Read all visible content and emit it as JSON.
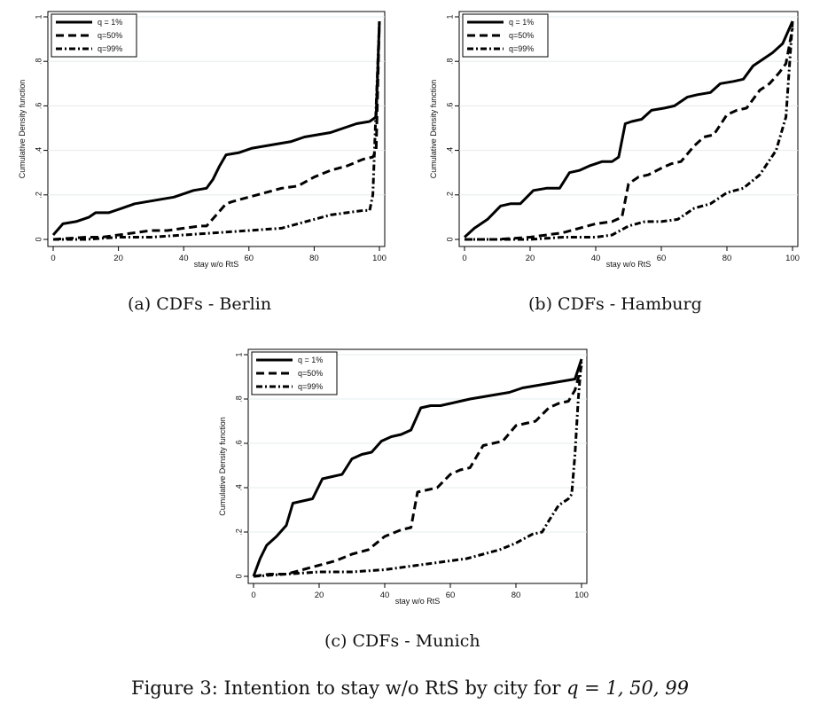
{
  "figure_caption": {
    "label": "Figure 3:",
    "text": "Intention to stay w/o RtS by city for",
    "math": "q = 1, 50, 99"
  },
  "chart_data": [
    {
      "type": "line",
      "caption": "(a) CDFs - Berlin",
      "xlabel": "stay w/o RtS",
      "ylabel": "Cumulative Density function",
      "xlim": [
        0,
        100
      ],
      "ylim": [
        0,
        1
      ],
      "xticks": [
        "0",
        "20",
        "40",
        "60",
        "80",
        "100"
      ],
      "yticks": [
        "0",
        ".2",
        ".4",
        ".6",
        ".8",
        "1"
      ],
      "legend": [
        "q = 1%",
        "q=50%",
        "q=99%"
      ],
      "series": [
        {
          "name": "q = 1%",
          "style": "solid",
          "x": [
            0,
            3,
            7,
            11,
            13,
            17,
            21,
            25,
            29,
            33,
            37,
            41,
            43,
            47,
            49,
            51,
            53,
            57,
            61,
            65,
            69,
            73,
            77,
            81,
            85,
            89,
            93,
            97,
            99,
            100
          ],
          "y": [
            0.02,
            0.07,
            0.08,
            0.1,
            0.12,
            0.12,
            0.14,
            0.16,
            0.17,
            0.18,
            0.19,
            0.21,
            0.22,
            0.23,
            0.27,
            0.33,
            0.38,
            0.39,
            0.41,
            0.42,
            0.43,
            0.44,
            0.46,
            0.47,
            0.48,
            0.5,
            0.52,
            0.53,
            0.55,
            0.98
          ]
        },
        {
          "name": "q=50%",
          "style": "dashed",
          "x": [
            0,
            10,
            15,
            20,
            25,
            30,
            35,
            40,
            45,
            47,
            50,
            53,
            55,
            60,
            65,
            70,
            75,
            80,
            85,
            90,
            95,
            98,
            99,
            100
          ],
          "y": [
            0.0,
            0.01,
            0.01,
            0.02,
            0.03,
            0.04,
            0.04,
            0.05,
            0.06,
            0.06,
            0.11,
            0.16,
            0.17,
            0.19,
            0.21,
            0.23,
            0.24,
            0.28,
            0.31,
            0.33,
            0.36,
            0.37,
            0.4,
            0.98
          ]
        },
        {
          "name": "q=99%",
          "style": "dashdot",
          "x": [
            0,
            10,
            20,
            30,
            40,
            50,
            60,
            70,
            75,
            80,
            85,
            90,
            95,
            97,
            98,
            99,
            100
          ],
          "y": [
            0.0,
            0.0,
            0.01,
            0.01,
            0.02,
            0.03,
            0.04,
            0.05,
            0.07,
            0.09,
            0.11,
            0.12,
            0.13,
            0.13,
            0.2,
            0.6,
            0.98
          ]
        }
      ]
    },
    {
      "type": "line",
      "caption": "(b) CDFs - Hamburg",
      "xlabel": "stay w/o RtS",
      "ylabel": "Cumulative Density function",
      "xlim": [
        0,
        100
      ],
      "ylim": [
        0,
        1
      ],
      "xticks": [
        "0",
        "20",
        "40",
        "60",
        "80",
        "100"
      ],
      "yticks": [
        "0",
        ".2",
        ".4",
        ".6",
        ".8",
        "1"
      ],
      "legend": [
        "q = 1%",
        "q=50%",
        "q=99%"
      ],
      "series": [
        {
          "name": "q = 1%",
          "style": "solid",
          "x": [
            0,
            3,
            7,
            11,
            14,
            17,
            21,
            25,
            29,
            32,
            35,
            38,
            42,
            45,
            47,
            49,
            51,
            54,
            57,
            61,
            64,
            68,
            71,
            75,
            78,
            82,
            85,
            88,
            91,
            94,
            97,
            100
          ],
          "y": [
            0.01,
            0.05,
            0.09,
            0.15,
            0.16,
            0.16,
            0.22,
            0.23,
            0.23,
            0.3,
            0.31,
            0.33,
            0.35,
            0.35,
            0.37,
            0.52,
            0.53,
            0.54,
            0.58,
            0.59,
            0.6,
            0.64,
            0.65,
            0.66,
            0.7,
            0.71,
            0.72,
            0.78,
            0.81,
            0.84,
            0.88,
            0.98
          ]
        },
        {
          "name": "q=50%",
          "style": "dashed",
          "x": [
            0,
            10,
            20,
            30,
            35,
            40,
            45,
            48,
            50,
            53,
            56,
            60,
            63,
            66,
            70,
            73,
            76,
            80,
            83,
            86,
            90,
            93,
            96,
            98,
            100
          ],
          "y": [
            0.0,
            0.0,
            0.01,
            0.03,
            0.05,
            0.07,
            0.08,
            0.1,
            0.25,
            0.28,
            0.29,
            0.32,
            0.34,
            0.35,
            0.42,
            0.46,
            0.47,
            0.56,
            0.58,
            0.59,
            0.67,
            0.7,
            0.75,
            0.79,
            0.95
          ]
        },
        {
          "name": "q=99%",
          "style": "dashdot",
          "x": [
            0,
            10,
            20,
            30,
            40,
            45,
            50,
            55,
            60,
            65,
            70,
            75,
            80,
            85,
            90,
            95,
            98,
            100
          ],
          "y": [
            0.0,
            0.0,
            0.0,
            0.01,
            0.01,
            0.02,
            0.06,
            0.08,
            0.08,
            0.09,
            0.14,
            0.16,
            0.21,
            0.23,
            0.29,
            0.4,
            0.55,
            0.98
          ]
        }
      ]
    },
    {
      "type": "line",
      "caption": "(c) CDFs - Munich",
      "xlabel": "stay w/o RtS",
      "ylabel": "Cumulative Density function",
      "xlim": [
        0,
        100
      ],
      "ylim": [
        0,
        1
      ],
      "xticks": [
        "0",
        "20",
        "40",
        "60",
        "80",
        "100"
      ],
      "yticks": [
        "0",
        ".2",
        ".4",
        ".6",
        ".8",
        "1"
      ],
      "legend": [
        "q = 1%",
        "q=50%",
        "q=99%"
      ],
      "series": [
        {
          "name": "q = 1%",
          "style": "solid",
          "x": [
            0,
            2,
            4,
            7,
            10,
            12,
            15,
            18,
            21,
            24,
            27,
            30,
            33,
            36,
            39,
            42,
            45,
            48,
            51,
            54,
            57,
            60,
            63,
            66,
            70,
            74,
            78,
            82,
            86,
            90,
            94,
            98,
            100
          ],
          "y": [
            0.0,
            0.08,
            0.14,
            0.18,
            0.23,
            0.33,
            0.34,
            0.35,
            0.44,
            0.45,
            0.46,
            0.53,
            0.55,
            0.56,
            0.61,
            0.63,
            0.64,
            0.66,
            0.76,
            0.77,
            0.77,
            0.78,
            0.79,
            0.8,
            0.81,
            0.82,
            0.83,
            0.85,
            0.86,
            0.87,
            0.88,
            0.89,
            0.98
          ]
        },
        {
          "name": "q=50%",
          "style": "dashed",
          "x": [
            0,
            5,
            10,
            15,
            20,
            25,
            30,
            35,
            40,
            45,
            48,
            50,
            53,
            56,
            60,
            63,
            66,
            70,
            73,
            76,
            80,
            83,
            86,
            90,
            93,
            96,
            98,
            100
          ],
          "y": [
            0.0,
            0.01,
            0.01,
            0.03,
            0.05,
            0.07,
            0.1,
            0.12,
            0.18,
            0.21,
            0.22,
            0.38,
            0.39,
            0.4,
            0.46,
            0.48,
            0.49,
            0.59,
            0.6,
            0.61,
            0.68,
            0.69,
            0.7,
            0.76,
            0.78,
            0.79,
            0.84,
            0.95
          ]
        },
        {
          "name": "q=99%",
          "style": "dashdot",
          "x": [
            0,
            10,
            20,
            30,
            40,
            45,
            50,
            55,
            60,
            65,
            70,
            75,
            80,
            85,
            88,
            90,
            93,
            96,
            97,
            98,
            99,
            100
          ],
          "y": [
            0.0,
            0.01,
            0.02,
            0.02,
            0.03,
            0.04,
            0.05,
            0.06,
            0.07,
            0.08,
            0.1,
            0.12,
            0.15,
            0.19,
            0.2,
            0.25,
            0.32,
            0.35,
            0.37,
            0.55,
            0.8,
            0.98
          ]
        }
      ]
    }
  ]
}
